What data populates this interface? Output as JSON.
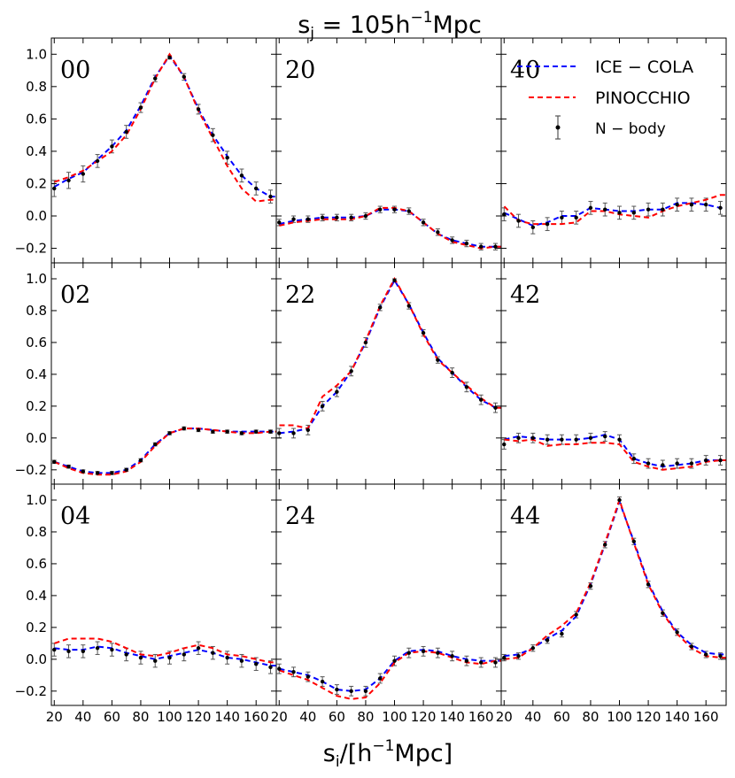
{
  "chart_data": {
    "type": "line",
    "title": "s_j = 105h^-1 Mpc",
    "title_parts": {
      "s": "s",
      "sub": "j",
      "eq": " = 105h",
      "sup": "−1",
      "unit": "Mpc"
    },
    "xlabel_parts": {
      "s": "s",
      "sub": "i",
      "slash": "/[h",
      "sup": "−1",
      "unit": "Mpc]"
    },
    "xlim": [
      18,
      174
    ],
    "ylim": [
      -0.29,
      1.1
    ],
    "yticks": [
      1.0,
      0.8,
      0.6,
      0.4,
      0.2,
      0.0,
      -0.2
    ],
    "ytick_labels": [
      "1.0",
      "0.8",
      "0.6",
      "0.4",
      "0.2",
      "0.0",
      "−0.2"
    ],
    "xticks": [
      20,
      40,
      60,
      80,
      100,
      120,
      140,
      160
    ],
    "xtick_labels": [
      "20",
      "40",
      "60",
      "80",
      "100",
      "120",
      "140",
      "160"
    ],
    "legend": [
      {
        "label": "ICE − COLA",
        "color": "#0000ff",
        "style": "dashed"
      },
      {
        "label": "PINOCCHIO",
        "color": "#ff0000",
        "style": "dashed"
      },
      {
        "label": "N − body",
        "color": "#000000",
        "style": "errorbar"
      }
    ],
    "x": [
      20,
      30,
      40,
      50,
      60,
      70,
      80,
      90,
      100,
      110,
      120,
      130,
      140,
      150,
      160,
      170
    ],
    "panels": [
      {
        "label": "00",
        "nbody": [
          0.17,
          0.22,
          0.26,
          0.34,
          0.43,
          0.52,
          0.67,
          0.85,
          0.98,
          0.86,
          0.66,
          0.5,
          0.36,
          0.25,
          0.17,
          0.12
        ],
        "ice": [
          0.18,
          0.23,
          0.27,
          0.35,
          0.43,
          0.53,
          0.68,
          0.86,
          0.99,
          0.86,
          0.66,
          0.5,
          0.37,
          0.25,
          0.17,
          0.12
        ],
        "pinocchio": [
          0.21,
          0.24,
          0.28,
          0.34,
          0.4,
          0.5,
          0.66,
          0.85,
          1.0,
          0.86,
          0.65,
          0.48,
          0.31,
          0.17,
          0.09,
          0.1
        ],
        "err": [
          0.05,
          0.05,
          0.05,
          0.04,
          0.04,
          0.04,
          0.03,
          0.02,
          0.01,
          0.02,
          0.03,
          0.04,
          0.04,
          0.04,
          0.04,
          0.04
        ]
      },
      {
        "label": "20",
        "nbody": [
          -0.04,
          -0.02,
          -0.02,
          -0.01,
          -0.01,
          -0.01,
          0.0,
          0.04,
          0.04,
          0.03,
          -0.04,
          -0.1,
          -0.15,
          -0.17,
          -0.19,
          -0.19
        ],
        "ice": [
          -0.05,
          -0.03,
          -0.02,
          -0.01,
          -0.01,
          -0.01,
          0.0,
          0.04,
          0.04,
          0.03,
          -0.04,
          -0.11,
          -0.15,
          -0.17,
          -0.19,
          -0.19
        ],
        "pinocchio": [
          -0.06,
          -0.04,
          -0.03,
          -0.02,
          -0.02,
          -0.02,
          0.0,
          0.05,
          0.05,
          0.03,
          -0.04,
          -0.11,
          -0.16,
          -0.18,
          -0.2,
          -0.19
        ],
        "err": [
          0.02,
          0.02,
          0.02,
          0.02,
          0.02,
          0.02,
          0.02,
          0.02,
          0.02,
          0.02,
          0.02,
          0.02,
          0.02,
          0.02,
          0.02,
          0.02
        ]
      },
      {
        "label": "40",
        "nbody": [
          0.01,
          -0.03,
          -0.07,
          -0.05,
          -0.01,
          -0.01,
          0.05,
          0.04,
          0.02,
          0.02,
          0.04,
          0.04,
          0.07,
          0.07,
          0.07,
          0.05
        ],
        "ice": [
          0.02,
          -0.02,
          -0.06,
          -0.04,
          0.0,
          0.0,
          0.05,
          0.04,
          0.03,
          0.03,
          0.04,
          0.04,
          0.08,
          0.08,
          0.07,
          0.05
        ],
        "pinocchio": [
          0.06,
          -0.03,
          -0.05,
          -0.05,
          -0.05,
          -0.04,
          0.03,
          0.03,
          0.01,
          0.0,
          -0.01,
          0.03,
          0.06,
          0.08,
          0.1,
          0.13
        ],
        "err": [
          0.04,
          0.04,
          0.04,
          0.04,
          0.04,
          0.04,
          0.04,
          0.04,
          0.04,
          0.04,
          0.04,
          0.04,
          0.04,
          0.04,
          0.04,
          0.04
        ]
      },
      {
        "label": "02",
        "nbody": [
          -0.15,
          -0.18,
          -0.21,
          -0.22,
          -0.22,
          -0.2,
          -0.14,
          -0.04,
          0.03,
          0.06,
          0.05,
          0.04,
          0.04,
          0.03,
          0.04,
          0.04
        ],
        "ice": [
          -0.15,
          -0.18,
          -0.21,
          -0.22,
          -0.22,
          -0.2,
          -0.14,
          -0.04,
          0.03,
          0.06,
          0.06,
          0.05,
          0.04,
          0.04,
          0.04,
          0.04
        ],
        "pinocchio": [
          -0.15,
          -0.19,
          -0.22,
          -0.23,
          -0.23,
          -0.21,
          -0.15,
          -0.05,
          0.03,
          0.06,
          0.06,
          0.05,
          0.04,
          0.03,
          0.03,
          0.04
        ],
        "err": [
          0.01,
          0.01,
          0.01,
          0.01,
          0.01,
          0.01,
          0.01,
          0.01,
          0.01,
          0.01,
          0.01,
          0.01,
          0.01,
          0.01,
          0.01,
          0.01
        ]
      },
      {
        "label": "22",
        "nbody": [
          0.03,
          0.03,
          0.05,
          0.2,
          0.29,
          0.42,
          0.6,
          0.82,
          0.99,
          0.83,
          0.66,
          0.49,
          0.41,
          0.32,
          0.24,
          0.19
        ],
        "ice": [
          0.03,
          0.04,
          0.06,
          0.2,
          0.29,
          0.42,
          0.6,
          0.82,
          0.99,
          0.84,
          0.66,
          0.5,
          0.41,
          0.32,
          0.24,
          0.19
        ],
        "pinocchio": [
          0.08,
          0.08,
          0.06,
          0.26,
          0.33,
          0.42,
          0.61,
          0.83,
          1.0,
          0.84,
          0.65,
          0.49,
          0.41,
          0.33,
          0.25,
          0.19
        ],
        "err": [
          0.03,
          0.03,
          0.03,
          0.03,
          0.03,
          0.03,
          0.03,
          0.02,
          0.01,
          0.02,
          0.02,
          0.02,
          0.03,
          0.03,
          0.03,
          0.03
        ]
      },
      {
        "label": "42",
        "nbody": [
          -0.04,
          0.0,
          0.0,
          -0.01,
          -0.01,
          -0.01,
          0.0,
          0.01,
          -0.01,
          -0.13,
          -0.16,
          -0.17,
          -0.16,
          -0.16,
          -0.14,
          -0.14
        ],
        "ice": [
          -0.01,
          0.01,
          0.0,
          -0.01,
          -0.01,
          -0.01,
          0.0,
          0.02,
          -0.01,
          -0.13,
          -0.16,
          -0.18,
          -0.17,
          -0.16,
          -0.14,
          -0.14
        ],
        "pinocchio": [
          -0.01,
          -0.02,
          -0.01,
          -0.05,
          -0.04,
          -0.04,
          -0.03,
          -0.03,
          -0.04,
          -0.15,
          -0.18,
          -0.2,
          -0.19,
          -0.18,
          -0.15,
          -0.14
        ],
        "err": [
          0.03,
          0.03,
          0.03,
          0.03,
          0.03,
          0.03,
          0.03,
          0.03,
          0.03,
          0.03,
          0.03,
          0.03,
          0.03,
          0.03,
          0.03,
          0.03
        ]
      },
      {
        "label": "04",
        "nbody": [
          0.06,
          0.05,
          0.05,
          0.07,
          0.06,
          0.03,
          0.01,
          -0.01,
          0.01,
          0.03,
          0.07,
          0.04,
          0.01,
          -0.01,
          -0.03,
          -0.05
        ],
        "ice": [
          0.07,
          0.06,
          0.06,
          0.08,
          0.07,
          0.04,
          0.02,
          0.0,
          0.02,
          0.04,
          0.06,
          0.04,
          0.01,
          0.0,
          -0.02,
          -0.04
        ],
        "pinocchio": [
          0.1,
          0.13,
          0.13,
          0.13,
          0.11,
          0.07,
          0.03,
          0.02,
          0.04,
          0.07,
          0.09,
          0.07,
          0.03,
          0.02,
          0.0,
          -0.02
        ],
        "err": [
          0.04,
          0.04,
          0.04,
          0.04,
          0.04,
          0.04,
          0.04,
          0.04,
          0.04,
          0.04,
          0.04,
          0.04,
          0.04,
          0.04,
          0.04,
          0.04
        ]
      },
      {
        "label": "24",
        "nbody": [
          -0.06,
          -0.08,
          -0.11,
          -0.14,
          -0.19,
          -0.2,
          -0.2,
          -0.12,
          -0.01,
          0.04,
          0.05,
          0.04,
          0.02,
          -0.01,
          -0.02,
          -0.02
        ],
        "ice": [
          -0.06,
          -0.08,
          -0.1,
          -0.14,
          -0.19,
          -0.2,
          -0.19,
          -0.12,
          -0.01,
          0.05,
          0.06,
          0.05,
          0.02,
          0.0,
          -0.01,
          -0.01
        ],
        "pinocchio": [
          -0.07,
          -0.1,
          -0.13,
          -0.18,
          -0.23,
          -0.25,
          -0.24,
          -0.15,
          -0.02,
          0.04,
          0.05,
          0.04,
          0.01,
          -0.02,
          -0.03,
          -0.01
        ],
        "err": [
          0.03,
          0.03,
          0.03,
          0.03,
          0.03,
          0.03,
          0.03,
          0.03,
          0.03,
          0.03,
          0.03,
          0.03,
          0.03,
          0.03,
          0.03,
          0.03
        ]
      },
      {
        "label": "44",
        "nbody": [
          0.01,
          0.02,
          0.07,
          0.12,
          0.16,
          0.28,
          0.46,
          0.72,
          1.0,
          0.74,
          0.47,
          0.29,
          0.17,
          0.08,
          0.03,
          0.02
        ],
        "ice": [
          0.02,
          0.03,
          0.07,
          0.13,
          0.18,
          0.27,
          0.47,
          0.72,
          0.99,
          0.74,
          0.48,
          0.3,
          0.17,
          0.09,
          0.04,
          0.03
        ],
        "pinocchio": [
          0.0,
          0.01,
          0.07,
          0.15,
          0.21,
          0.29,
          0.48,
          0.73,
          1.0,
          0.73,
          0.47,
          0.29,
          0.16,
          0.07,
          0.02,
          0.01
        ],
        "err": [
          0.02,
          0.02,
          0.02,
          0.02,
          0.02,
          0.02,
          0.02,
          0.02,
          0.02,
          0.02,
          0.02,
          0.02,
          0.02,
          0.02,
          0.02,
          0.02
        ]
      }
    ]
  }
}
